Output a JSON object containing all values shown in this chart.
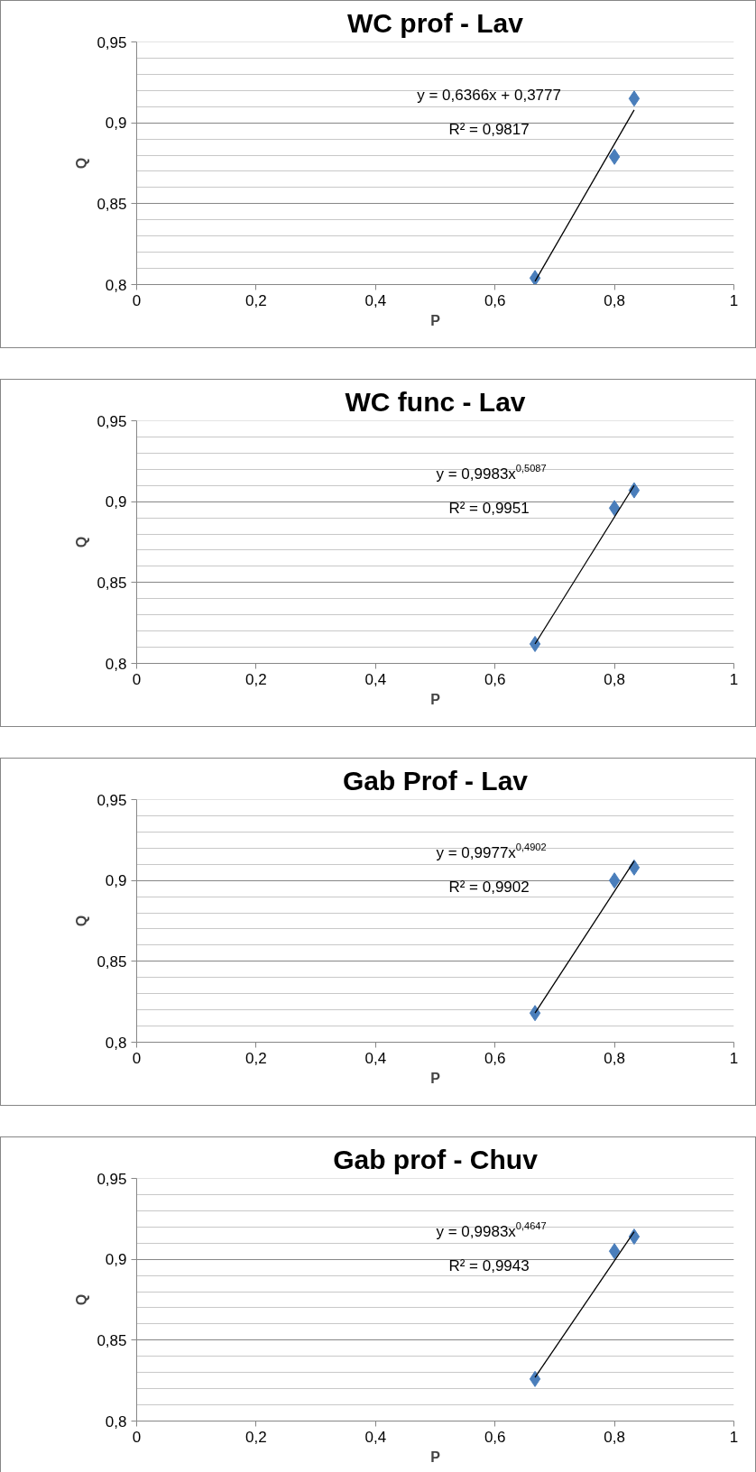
{
  "chart_data": [
    {
      "type": "scatter",
      "title": "WC prof - Lav",
      "xlabel": "P",
      "ylabel": "Q",
      "marker": "diamond",
      "grid": "y",
      "xlim": [
        0,
        1
      ],
      "ylim": [
        0.8,
        0.95
      ],
      "xticks": [
        0,
        {
          "value": 0.2,
          "label": "0,2"
        },
        {
          "value": 0.4,
          "label": "0,4"
        },
        {
          "value": 0.6,
          "label": "0,6"
        },
        {
          "value": 0.8,
          "label": "0,8"
        },
        1
      ],
      "yticks": [
        {
          "value": 0.8,
          "label": "0,8"
        },
        {
          "value": 0.85,
          "label": "0,85"
        },
        {
          "value": 0.9,
          "label": "0,9"
        },
        {
          "value": 0.95,
          "label": "0,95"
        }
      ],
      "annotations": [
        "y = 0,6366x + 0,3777",
        "R² = 0,9817"
      ],
      "series": [
        {
          "type": "scatter",
          "color": "#4a7ebb",
          "x": [
            0.667,
            0.8,
            0.833
          ],
          "values": [
            0.804,
            0.879,
            0.915
          ]
        },
        {
          "type": "line",
          "color": "#000000",
          "marker": "none",
          "x": [
            0.667,
            0.833
          ],
          "values": [
            0.802,
            0.908
          ]
        }
      ]
    },
    {
      "type": "scatter",
      "title": "WC func - Lav",
      "xlabel": "P",
      "ylabel": "Q",
      "marker": "diamond",
      "grid": "y",
      "xlim": [
        0,
        1
      ],
      "ylim": [
        0.8,
        0.95
      ],
      "xticks": [
        0,
        {
          "value": 0.2,
          "label": "0,2"
        },
        {
          "value": 0.4,
          "label": "0,4"
        },
        {
          "value": 0.6,
          "label": "0,6"
        },
        {
          "value": 0.8,
          "label": "0,8"
        },
        1
      ],
      "yticks": [
        {
          "value": 0.8,
          "label": "0,8"
        },
        {
          "value": 0.85,
          "label": "0,85"
        },
        {
          "value": 0.9,
          "label": "0,9"
        },
        {
          "value": 0.95,
          "label": "0,95"
        }
      ],
      "annotations": [
        "y = 0,9983x$^{0,5087}$",
        "R² = 0,9951"
      ],
      "series": [
        {
          "type": "scatter",
          "color": "#4a7ebb",
          "x": [
            0.667,
            0.8,
            0.833
          ],
          "values": [
            0.812,
            0.896,
            0.907
          ]
        },
        {
          "type": "line",
          "color": "#000000",
          "marker": "none",
          "x": [
            0.667,
            0.833
          ],
          "values": [
            0.812,
            0.91
          ]
        }
      ]
    },
    {
      "type": "scatter",
      "title": "Gab Prof - Lav",
      "xlabel": "P",
      "ylabel": "Q",
      "marker": "diamond",
      "grid": "y",
      "xlim": [
        0,
        1
      ],
      "ylim": [
        0.8,
        0.95
      ],
      "xticks": [
        0,
        {
          "value": 0.2,
          "label": "0,2"
        },
        {
          "value": 0.4,
          "label": "0,4"
        },
        {
          "value": 0.6,
          "label": "0,6"
        },
        {
          "value": 0.8,
          "label": "0,8"
        },
        1
      ],
      "yticks": [
        {
          "value": 0.8,
          "label": "0,8"
        },
        {
          "value": 0.85,
          "label": "0,85"
        },
        {
          "value": 0.9,
          "label": "0,9"
        },
        {
          "value": 0.95,
          "label": "0,95"
        }
      ],
      "annotations": [
        "y = 0,9977x$^{0,4902}$",
        "R² = 0,9902"
      ],
      "series": [
        {
          "type": "scatter",
          "color": "#4a7ebb",
          "x": [
            0.667,
            0.8,
            0.833
          ],
          "values": [
            0.818,
            0.9,
            0.908
          ]
        },
        {
          "type": "line",
          "color": "#000000",
          "marker": "none",
          "x": [
            0.667,
            0.833
          ],
          "values": [
            0.818,
            0.912
          ]
        }
      ]
    },
    {
      "type": "scatter",
      "title": "Gab prof - Chuv",
      "xlabel": "P",
      "ylabel": "Q",
      "marker": "diamond",
      "grid": "y",
      "xlim": [
        0,
        1
      ],
      "ylim": [
        0.8,
        0.95
      ],
      "xticks": [
        0,
        {
          "value": 0.2,
          "label": "0,2"
        },
        {
          "value": 0.4,
          "label": "0,4"
        },
        {
          "value": 0.6,
          "label": "0,6"
        },
        {
          "value": 0.8,
          "label": "0,8"
        },
        1
      ],
      "yticks": [
        {
          "value": 0.8,
          "label": "0,8"
        },
        {
          "value": 0.85,
          "label": "0,85"
        },
        {
          "value": 0.9,
          "label": "0,9"
        },
        {
          "value": 0.95,
          "label": "0,95"
        }
      ],
      "annotations": [
        "y = 0,9983x$^{0,4647}$",
        "R² = 0,9943"
      ],
      "series": [
        {
          "type": "scatter",
          "color": "#4a7ebb",
          "x": [
            0.667,
            0.8,
            0.833
          ],
          "values": [
            0.826,
            0.905,
            0.914
          ]
        },
        {
          "type": "line",
          "color": "#000000",
          "marker": "none",
          "x": [
            0.667,
            0.833
          ],
          "values": [
            0.827,
            0.917
          ]
        }
      ]
    }
  ]
}
